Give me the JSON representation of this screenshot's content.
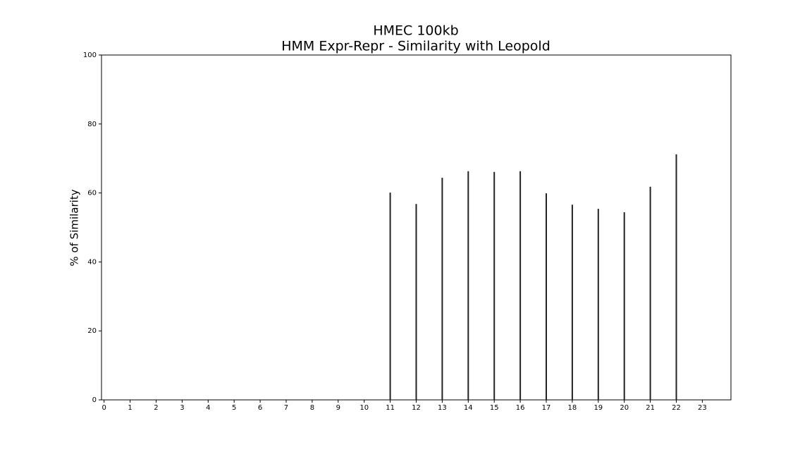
{
  "chart_data": {
    "type": "bar",
    "title": "HMEC 100kb",
    "subtitle": "HMM Expr-Repr - Similarity with Leopold",
    "y_label": "% of Similarity",
    "x": [
      0,
      1,
      2,
      3,
      4,
      5,
      6,
      7,
      8,
      9,
      10,
      11,
      12,
      13,
      14,
      15,
      16,
      17,
      18,
      19,
      20,
      21,
      22,
      23
    ],
    "values": [
      0,
      0,
      0,
      0,
      0,
      0,
      0,
      0,
      0,
      0,
      0,
      60.1,
      56.8,
      64.4,
      66.3,
      66.1,
      66.3,
      59.9,
      56.6,
      55.4,
      54.4,
      61.8,
      71.2,
      0
    ],
    "color": "#222222",
    "xlim": [
      -0.1,
      24.1
    ],
    "xticks": [
      0,
      1,
      2,
      3,
      4,
      5,
      6,
      7,
      8,
      9,
      10,
      11,
      12,
      13,
      14,
      15,
      16,
      17,
      18,
      19,
      20,
      21,
      22,
      23
    ],
    "ylim": [
      0,
      100
    ],
    "yticks": [
      0,
      20,
      40,
      60,
      80,
      100
    ],
    "grid": false
  }
}
